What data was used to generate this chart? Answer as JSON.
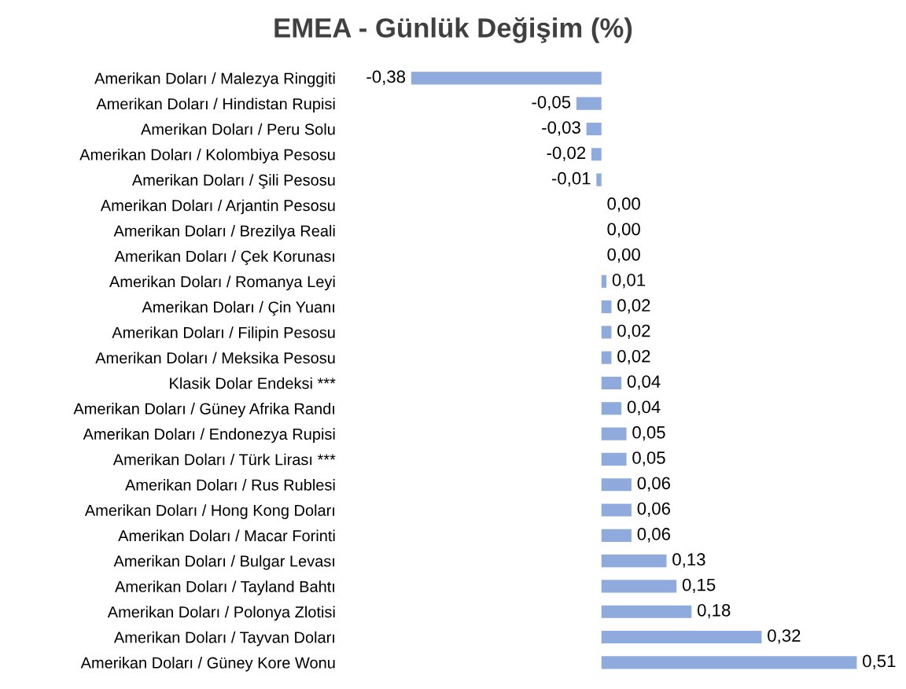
{
  "chart_data": {
    "type": "bar",
    "orientation": "horizontal",
    "title": "EMEA - Günlük Değişim (%)",
    "categories": [
      "Amerikan Doları / Malezya Ringgiti",
      "Amerikan Doları / Hindistan Rupisi",
      "Amerikan Doları / Peru Solu",
      "Amerikan Doları / Kolombiya Pesosu",
      "Amerikan Doları / Şili Pesosu",
      "Amerikan Doları / Arjantin Pesosu",
      "Amerikan Doları / Brezilya Reali",
      "Amerikan Doları / Çek Korunası",
      "Amerikan Doları / Romanya Leyi",
      "Amerikan Doları / Çin Yuanı",
      "Amerikan Doları / Filipin Pesosu",
      "Amerikan Doları / Meksika Pesosu",
      "Klasik Dolar Endeksi ***",
      "Amerikan Doları / Güney Afrika Randı",
      "Amerikan Doları / Endonezya Rupisi",
      "Amerikan Doları / Türk Lirası ***",
      "Amerikan Doları / Rus Rublesi",
      "Amerikan Doları / Hong Kong Doları",
      "Amerikan Doları / Macar Forinti",
      "Amerikan Doları / Bulgar Levası",
      "Amerikan Doları / Tayland Bahtı",
      "Amerikan Doları / Polonya Zlotisi",
      "Amerikan Doları / Tayvan Doları",
      "Amerikan Doları / Güney Kore Wonu"
    ],
    "values": [
      -0.38,
      -0.05,
      -0.03,
      -0.02,
      -0.01,
      0.0,
      0.0,
      0.0,
      0.01,
      0.02,
      0.02,
      0.02,
      0.04,
      0.04,
      0.05,
      0.05,
      0.06,
      0.06,
      0.06,
      0.13,
      0.15,
      0.18,
      0.32,
      0.51
    ],
    "value_labels": [
      "-0,38",
      "-0,05",
      "-0,03",
      "-0,02",
      "-0,01",
      "0,00",
      "0,00",
      "0,00",
      "0,01",
      "0,02",
      "0,02",
      "0,02",
      "0,04",
      "0,04",
      "0,05",
      "0,05",
      "0,06",
      "0,06",
      "0,06",
      "0,13",
      "0,15",
      "0,18",
      "0,32",
      "0,51"
    ],
    "color": "#8faadc",
    "grid": false,
    "legend": false
  }
}
